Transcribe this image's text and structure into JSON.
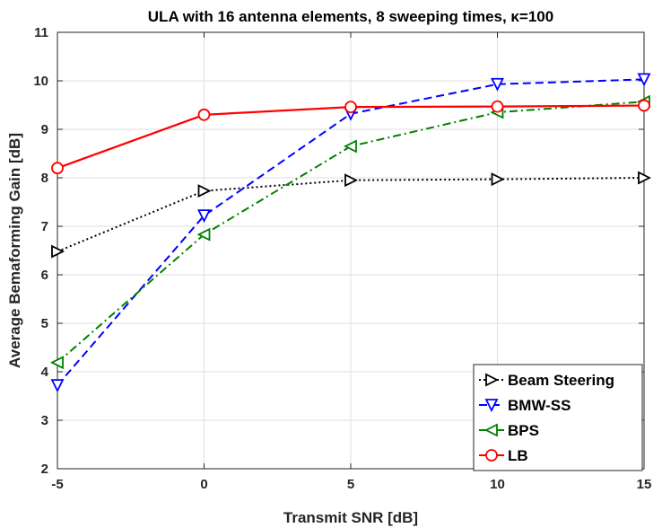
{
  "chart_data": {
    "type": "line",
    "title": "ULA with 16 antenna elements, 8 sweeping times, κ=100",
    "xlabel": "Transmit SNR [dB]",
    "ylabel": "Average Bemaforming Gain [dB]",
    "x": [
      -5,
      0,
      5,
      10,
      15
    ],
    "xticks": [
      "-5",
      "0",
      "5",
      "10",
      "15"
    ],
    "yticks": [
      "2",
      "3",
      "4",
      "5",
      "6",
      "7",
      "8",
      "9",
      "10",
      "11"
    ],
    "xlim": [
      -5,
      15
    ],
    "ylim": [
      2,
      11
    ],
    "grid": true,
    "legend_position": "bottom-right",
    "series": [
      {
        "name": "Beam Steering",
        "values": [
          6.48,
          7.73,
          7.95,
          7.97,
          8.0
        ],
        "color": "#000000",
        "marker": "triangle-right",
        "linestyle": "dotted"
      },
      {
        "name": "BMW-SS",
        "values": [
          3.72,
          7.22,
          9.32,
          9.93,
          10.03
        ],
        "color": "#0000ff",
        "marker": "triangle-down",
        "linestyle": "dashed"
      },
      {
        "name": "BPS",
        "values": [
          4.19,
          6.83,
          8.65,
          9.35,
          9.57
        ],
        "color": "#008000",
        "marker": "triangle-left",
        "linestyle": "dashdot"
      },
      {
        "name": "LB",
        "values": [
          8.2,
          9.3,
          9.46,
          9.47,
          9.49
        ],
        "color": "#ff0000",
        "marker": "circle",
        "linestyle": "solid"
      }
    ]
  }
}
